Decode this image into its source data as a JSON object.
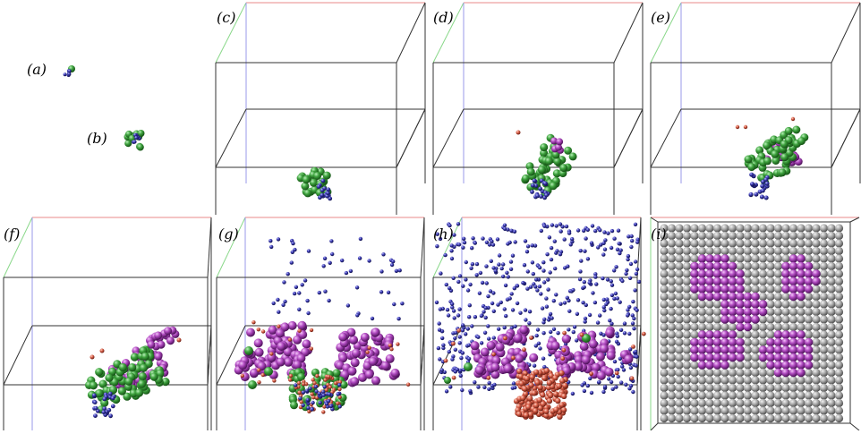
{
  "figure": {
    "panels": [
      {
        "id": "a",
        "label": "(a)"
      },
      {
        "id": "b",
        "label": "(b)"
      },
      {
        "id": "c",
        "label": "(c)"
      },
      {
        "id": "d",
        "label": "(d)"
      },
      {
        "id": "e",
        "label": "(e)"
      },
      {
        "id": "f",
        "label": "(f)"
      },
      {
        "id": "g",
        "label": "(g)"
      },
      {
        "id": "h",
        "label": "(h)"
      },
      {
        "id": "i",
        "label": "(i)"
      }
    ],
    "colors": {
      "green_atom": "#3fa33f",
      "blue_atom": "#3c3cb4",
      "magenta_atom": "#b04ac0",
      "red_atom": "#d8604a",
      "gray_atom": "#a8a8a8",
      "box_edge": "#333333",
      "axis_red": "#e88a8a",
      "axis_green": "#8ad88a",
      "axis_blue": "#9a9ae8"
    }
  }
}
